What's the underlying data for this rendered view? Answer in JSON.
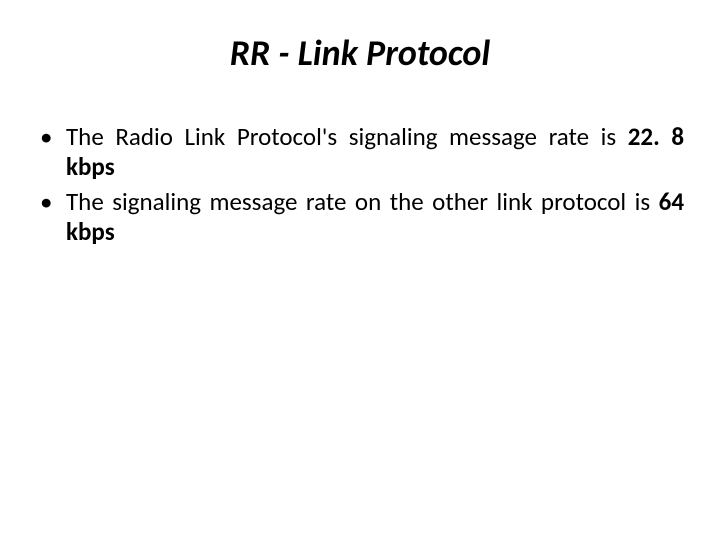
{
  "title": "RR - Link Protocol",
  "bullets": [
    {
      "pre": "The Radio Link Protocol's signaling message rate is ",
      "bold": "22. 8 kbps",
      "post": ""
    },
    {
      "pre": "The signaling message rate on the other link protocol is ",
      "bold": "64 kbps",
      "post": ""
    }
  ]
}
